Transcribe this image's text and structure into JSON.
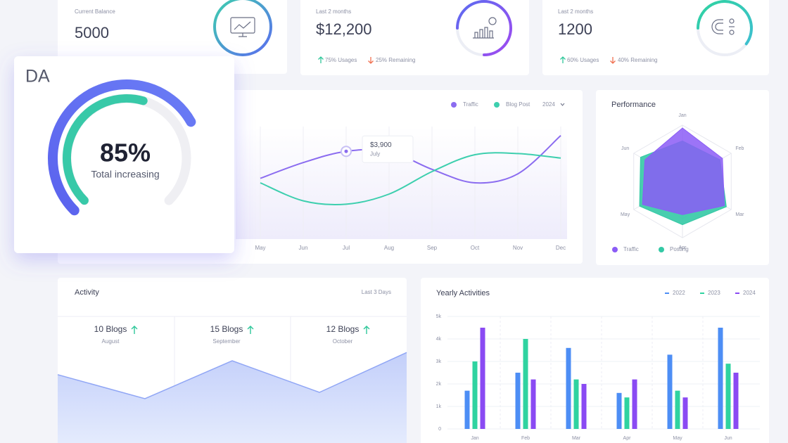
{
  "top_cards": [
    {
      "label": "Current Balance",
      "value": "5000"
    },
    {
      "label": "Last 2 months",
      "value": "$12,200",
      "usage": {
        "value": 75,
        "label": "75% Usages"
      },
      "remaining": "25% Remaining"
    },
    {
      "label": "Last 2 months",
      "value": "1200",
      "usage": {
        "value": 60,
        "label": "60% Usages"
      },
      "remaining": "40% Remaining"
    }
  ],
  "da_card": {
    "title": "DA",
    "gauge": {
      "value": 85,
      "label": "85%",
      "inner_value": 56
    },
    "caption": "Total increasing"
  },
  "traffic_chart": {
    "type": "line",
    "categories": [
      "May",
      "Jun",
      "Jul",
      "Aug",
      "Sep",
      "Oct",
      "Nov",
      "Dec"
    ],
    "series": [
      {
        "name": "Traffic",
        "color": "#8b6cf0",
        "values": [
          2700,
          3400,
          3900,
          3900,
          3100,
          2500,
          2900,
          4600
        ]
      },
      {
        "name": "Blog Post",
        "color": "#3dcfae",
        "values": [
          2500,
          1700,
          1550,
          2000,
          3000,
          3750,
          3800,
          3600
        ]
      }
    ],
    "ylim": [
      0,
      5000
    ],
    "year_select": "2024",
    "tooltip": {
      "value": "$3,900",
      "category": "July"
    }
  },
  "performance": {
    "type": "radar",
    "title": "Performance",
    "categories": [
      "Jan",
      "Feb",
      "Mar",
      "Apr",
      "May",
      "Jun"
    ],
    "series": [
      {
        "name": "Traffic",
        "color": "#8b5cf6",
        "values": [
          95,
          82,
          86,
          59,
          82,
          77
        ]
      },
      {
        "name": "Posting",
        "color": "#34c9a5",
        "values": [
          72,
          77,
          90,
          77,
          88,
          86
        ]
      }
    ],
    "rlim": [
      0,
      100
    ]
  },
  "activity": {
    "title": "Activity",
    "period": "Last 3 Days",
    "stats": [
      {
        "label": "10 Blogs",
        "month": "August"
      },
      {
        "label": "15 Blogs",
        "month": "September"
      },
      {
        "label": "12 Blogs",
        "month": "October"
      }
    ],
    "trend": [
      10.8,
      7,
      13,
      8,
      14.3
    ],
    "ylim": [
      0,
      20
    ]
  },
  "yearly": {
    "type": "bar",
    "title": "Yearly Activities",
    "categories": [
      "Jan",
      "Feb",
      "Mar",
      "Apr",
      "May",
      "Jun"
    ],
    "series": [
      {
        "name": "2022",
        "color": "#4d8ef5",
        "values": [
          1700,
          2500,
          3600,
          1600,
          3300,
          4500
        ]
      },
      {
        "name": "2023",
        "color": "#2fd3a0",
        "values": [
          3000,
          4000,
          2200,
          1400,
          1700,
          2900
        ]
      },
      {
        "name": "2024",
        "color": "#8a4af3",
        "values": [
          4500,
          2200,
          2000,
          2200,
          1400,
          2500
        ]
      }
    ],
    "ylim": [
      0,
      5000
    ],
    "yticks": [
      0,
      {
        "value": 1000,
        "label": "1k"
      },
      {
        "value": 2000,
        "label": "2k"
      },
      {
        "value": 3000,
        "label": "3k"
      },
      {
        "value": 4000,
        "label": "4k"
      },
      {
        "value": 5000,
        "label": "5k"
      }
    ],
    "grid": true
  }
}
